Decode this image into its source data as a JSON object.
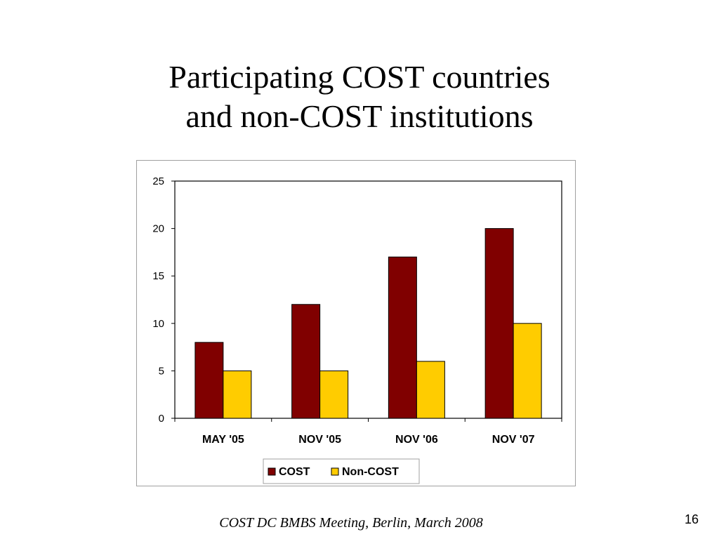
{
  "slide": {
    "title_line1": "Participating COST  countries",
    "title_line2": "and non-COST institutions",
    "footer": "COST DC BMBS Meeting, Berlin, March 2008",
    "page_number": "16"
  },
  "chart_data": {
    "type": "bar",
    "categories": [
      "MAY '05",
      "NOV '05",
      "NOV '06",
      "NOV '07"
    ],
    "series": [
      {
        "name": "COST",
        "values": [
          8,
          12,
          17,
          20
        ],
        "color": "#800000"
      },
      {
        "name": "Non-COST",
        "values": [
          5,
          5,
          6,
          10
        ],
        "color": "#FFCC00"
      }
    ],
    "ylim": [
      0,
      25
    ],
    "yticks": [
      0,
      5,
      10,
      15,
      20,
      25
    ],
    "grid": false,
    "legend": "bottom"
  }
}
